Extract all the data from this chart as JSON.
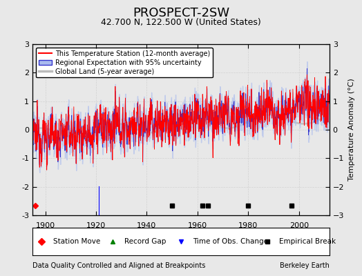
{
  "title": "PROSPECT-2SW",
  "subtitle": "42.700 N, 122.500 W (United States)",
  "ylabel": "Temperature Anomaly (°C)",
  "xlabel_left": "Data Quality Controlled and Aligned at Breakpoints",
  "xlabel_right": "Berkeley Earth",
  "xmin": 1895,
  "xmax": 2012,
  "ymin": -3,
  "ymax": 3,
  "yticks": [
    -3,
    -2,
    -1,
    0,
    1,
    2,
    3
  ],
  "xticks": [
    1900,
    1920,
    1940,
    1960,
    1980,
    2000
  ],
  "station_line_color": "#FF0000",
  "regional_line_color": "#3333CC",
  "regional_fill_color": "#AABBEE",
  "global_land_color": "#BBBBBB",
  "background_color": "#E8E8E8",
  "grid_color": "#CCCCCC",
  "legend_labels": [
    "This Temperature Station (12-month average)",
    "Regional Expectation with 95% uncertainty",
    "Global Land (5-year average)"
  ],
  "marker_events": {
    "station_move": [
      1896
    ],
    "record_gap": [],
    "time_of_obs_change": [
      1921
    ],
    "empirical_break": [
      1950,
      1962,
      1964,
      1980,
      1997
    ]
  },
  "seed": 12345
}
